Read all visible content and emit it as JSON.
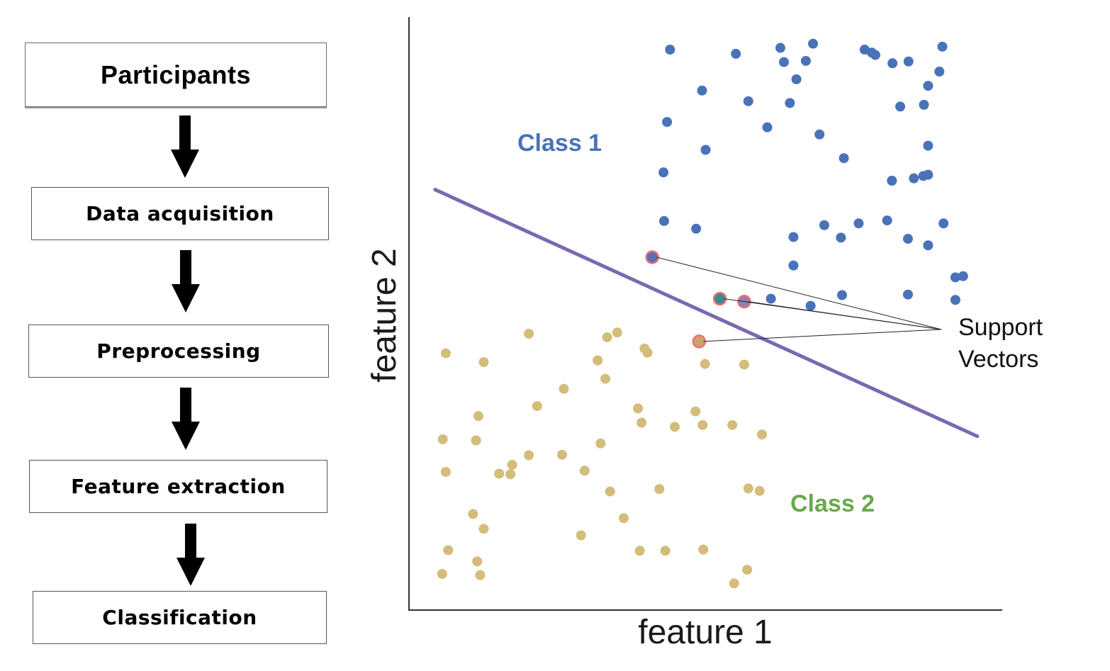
{
  "flowchart": {
    "steps": [
      {
        "label": "Participants"
      },
      {
        "label": "Data acquisition"
      },
      {
        "label": "Preprocessing"
      },
      {
        "label": "Feature extraction"
      },
      {
        "label": "Classification"
      }
    ]
  },
  "plot": {
    "xlabel": "feature 1",
    "ylabel": "feature 2",
    "class1": {
      "label": "Class 1",
      "color": "#4a72b8"
    },
    "class2": {
      "label": "Class 2",
      "color": "#6aa84f",
      "point_color": "#d4bc7a"
    },
    "decision_line_color": "#7a68b0",
    "support_vector_ring_color": "#f07070",
    "support_vectors_label": [
      "Support",
      "Vectors"
    ]
  },
  "chart_data": {
    "type": "scatter",
    "xlabel": "feature 1",
    "ylabel": "feature 2",
    "xlim": [
      0,
      100
    ],
    "ylim": [
      0,
      100
    ],
    "series": [
      {
        "name": "Class 1",
        "points": [
          [
            44.0,
            94.5
          ],
          [
            55.1,
            93.8
          ],
          [
            62.6,
            94.8
          ],
          [
            68.1,
            95.5
          ],
          [
            76.8,
            94.5
          ],
          [
            78.0,
            94.0
          ],
          [
            78.6,
            93.6
          ],
          [
            89.9,
            95.0
          ],
          [
            63.2,
            92.4
          ],
          [
            66.9,
            92.6
          ],
          [
            81.5,
            92.2
          ],
          [
            84.2,
            92.5
          ],
          [
            65.3,
            89.5
          ],
          [
            89.4,
            90.8
          ],
          [
            49.4,
            87.6
          ],
          [
            57.2,
            85.8
          ],
          [
            64.2,
            85.5
          ],
          [
            86.8,
            85.2
          ],
          [
            82.8,
            84.9
          ],
          [
            87.5,
            88.4
          ],
          [
            43.5,
            82.3
          ],
          [
            60.4,
            81.4
          ],
          [
            69.2,
            80.2
          ],
          [
            87.5,
            78.3
          ],
          [
            50.0,
            77.6
          ],
          [
            73.3,
            76.2
          ],
          [
            42.9,
            73.8
          ],
          [
            81.4,
            72.4
          ],
          [
            85.1,
            72.8
          ],
          [
            86.7,
            73.2
          ],
          [
            87.5,
            73.4
          ],
          [
            43.0,
            65.6
          ],
          [
            48.4,
            64.3
          ],
          [
            70.0,
            64.9
          ],
          [
            75.8,
            65.2
          ],
          [
            80.6,
            65.7
          ],
          [
            90.1,
            65.2
          ],
          [
            64.8,
            62.9
          ],
          [
            72.8,
            62.8
          ],
          [
            84.1,
            62.6
          ],
          [
            87.5,
            61.5
          ],
          [
            64.8,
            58.1
          ],
          [
            92.1,
            56.1
          ],
          [
            93.4,
            56.3
          ],
          [
            61.0,
            52.5
          ],
          [
            67.7,
            51.3
          ],
          [
            73.0,
            53.1
          ],
          [
            84.1,
            53.2
          ],
          [
            92.1,
            52.3
          ]
        ]
      },
      {
        "name": "Class 2",
        "points": [
          [
            20.2,
            46.6
          ],
          [
            33.4,
            46.0
          ],
          [
            35.1,
            46.8
          ],
          [
            6.2,
            43.3
          ],
          [
            12.6,
            41.8
          ],
          [
            40.2,
            43.4
          ],
          [
            39.7,
            44.1
          ],
          [
            31.8,
            42.1
          ],
          [
            33.1,
            39.0
          ],
          [
            49.9,
            41.5
          ],
          [
            56.5,
            41.4
          ],
          [
            26.1,
            37.3
          ],
          [
            11.7,
            32.7
          ],
          [
            21.6,
            34.4
          ],
          [
            38.6,
            34.0
          ],
          [
            48.3,
            33.5
          ],
          [
            39.2,
            31.6
          ],
          [
            44.8,
            30.9
          ],
          [
            49.5,
            31.2
          ],
          [
            54.5,
            31.2
          ],
          [
            59.5,
            29.6
          ],
          [
            5.7,
            28.8
          ],
          [
            11.3,
            28.6
          ],
          [
            32.3,
            28.1
          ],
          [
            20.2,
            26.1
          ],
          [
            25.8,
            26.2
          ],
          [
            15.2,
            23.0
          ],
          [
            17.4,
            24.5
          ],
          [
            17.1,
            22.9
          ],
          [
            29.6,
            23.5
          ],
          [
            6.2,
            23.3
          ],
          [
            33.9,
            20.0
          ],
          [
            42.2,
            20.4
          ],
          [
            57.2,
            20.5
          ],
          [
            59.1,
            20.1
          ],
          [
            10.8,
            16.2
          ],
          [
            12.6,
            13.7
          ],
          [
            36.2,
            15.5
          ],
          [
            29.0,
            12.6
          ],
          [
            6.6,
            10.1
          ],
          [
            38.9,
            10.0
          ],
          [
            43.2,
            10.0
          ],
          [
            49.6,
            10.2
          ],
          [
            11.5,
            8.2
          ],
          [
            5.6,
            6.1
          ],
          [
            12.0,
            5.9
          ],
          [
            57.0,
            6.8
          ],
          [
            54.8,
            4.5
          ]
        ]
      },
      {
        "name": "Support Vectors",
        "points": [
          [
            41.0,
            59.5
          ],
          [
            52.4,
            52.5
          ],
          [
            56.5,
            52.0
          ],
          [
            48.9,
            45.3
          ]
        ]
      }
    ],
    "decision_boundary": [
      [
        4.4,
        70.9
      ],
      [
        95.8,
        29.3
      ]
    ]
  }
}
